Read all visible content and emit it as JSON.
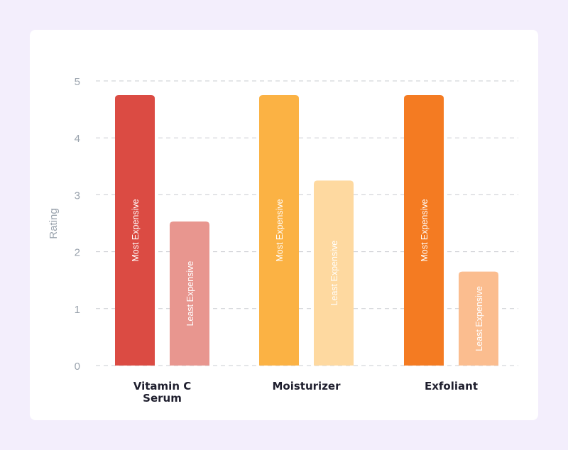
{
  "chart_data": {
    "type": "bar",
    "ylabel": "Rating",
    "ylim": [
      0,
      5
    ],
    "yticks": [
      "0",
      "1",
      "2",
      "3",
      "4",
      "5"
    ],
    "grid": true,
    "categories": [
      "Vitamin C\nSerum",
      "Moisturizer",
      "Exfoliant"
    ],
    "series": [
      {
        "name": "Most Expensive",
        "values": [
          4.75,
          4.75,
          4.75
        ],
        "colors": [
          "#db4b43",
          "#fbb244",
          "#f47b22"
        ]
      },
      {
        "name": "Least Expensive",
        "values": [
          2.53,
          3.25,
          1.65
        ],
        "colors": [
          "#e8968f",
          "#fed9a0",
          "#fbbd8f"
        ]
      }
    ]
  }
}
